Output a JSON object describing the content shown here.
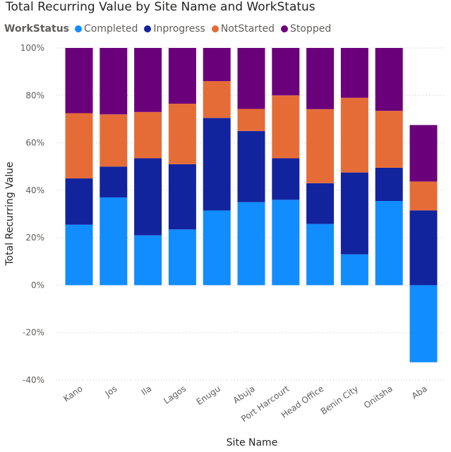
{
  "chart_data": {
    "type": "bar",
    "stacked": true,
    "normalized": "percent",
    "title": "Total Recurring Value by Site Name and WorkStatus",
    "xlabel": "Site Name",
    "ylabel": "Total Recurring Value",
    "ylim": [
      -40,
      100
    ],
    "yticks": [
      100,
      80,
      60,
      40,
      20,
      0,
      -20,
      -40
    ],
    "ytick_labels": [
      "100%",
      "80%",
      "60%",
      "40%",
      "20%",
      "0%",
      "-20%",
      "-40%"
    ],
    "grid": true,
    "legend": {
      "title": "WorkStatus",
      "position": "top-left"
    },
    "categories": [
      "Kano",
      "Jos",
      "Ila",
      "Lagos",
      "Enugu",
      "Abuja",
      "Port Harcourt",
      "Head Office",
      "Benin City",
      "Onitsha",
      "Aba"
    ],
    "series": [
      {
        "name": "Completed",
        "color": "#118DFF",
        "values": [
          25.5,
          37,
          21,
          23.5,
          31.5,
          35,
          36,
          25.8,
          13,
          35.5,
          -32.5
        ]
      },
      {
        "name": "Inprogress",
        "color": "#12239E",
        "values": [
          19.5,
          13,
          32.5,
          27.5,
          39,
          30,
          17.5,
          17.2,
          34.5,
          14,
          31.5
        ]
      },
      {
        "name": "NotStarted",
        "color": "#E66C37",
        "values": [
          27.5,
          22,
          19.5,
          25.5,
          15.5,
          9.3,
          26.5,
          31.2,
          31.5,
          24,
          12.2
        ]
      },
      {
        "name": "Stopped",
        "color": "#6B007B",
        "values": [
          27.5,
          28,
          27,
          23.5,
          14,
          25.7,
          20,
          25.8,
          21,
          26.5,
          23.8
        ]
      }
    ]
  }
}
